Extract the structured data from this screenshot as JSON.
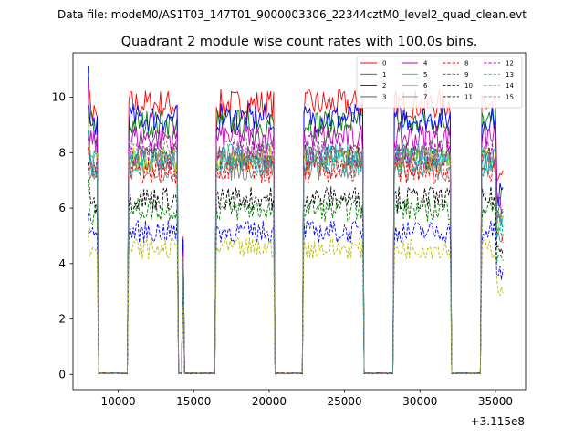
{
  "chart_data": {
    "type": "line",
    "suptitle": "Data file: modeM0/AS1T03_147T01_9000003306_22344cztM0_level2_quad_clean.evt",
    "title": "Quadrant 2 module wise count rates with 100.0s bins.",
    "xlabel": "",
    "ylabel": "",
    "x_offset_label": "+3.115e8",
    "xlim": [
      7000,
      37000
    ],
    "ylim": [
      -0.55,
      11.6
    ],
    "x_ticks": [
      10000,
      15000,
      20000,
      25000,
      30000,
      35000
    ],
    "x_tick_labels": [
      "10000",
      "15000",
      "20000",
      "25000",
      "30000",
      "35000"
    ],
    "y_ticks": [
      0,
      2,
      4,
      6,
      8,
      10
    ],
    "y_tick_labels": [
      "0",
      "2",
      "4",
      "6",
      "8",
      "10"
    ],
    "grid": false,
    "legend_position": "top-right",
    "legend_columns": 4,
    "segments": [
      {
        "start": 8000,
        "end": 8600,
        "state": "on"
      },
      {
        "start": 8700,
        "end": 10600,
        "state": "off"
      },
      {
        "start": 10700,
        "end": 13900,
        "state": "on"
      },
      {
        "start": 14000,
        "end": 14200,
        "state": "off"
      },
      {
        "start": 14300,
        "end": 14300,
        "state": "spike"
      },
      {
        "start": 14400,
        "end": 16400,
        "state": "off"
      },
      {
        "start": 16500,
        "end": 20300,
        "state": "on"
      },
      {
        "start": 20400,
        "end": 22200,
        "state": "off"
      },
      {
        "start": 22300,
        "end": 26200,
        "state": "on"
      },
      {
        "start": 26300,
        "end": 28200,
        "state": "off"
      },
      {
        "start": 28300,
        "end": 32000,
        "state": "on"
      },
      {
        "start": 32100,
        "end": 34000,
        "state": "off"
      },
      {
        "start": 34100,
        "end": 35500,
        "state": "on"
      }
    ],
    "series": [
      {
        "name": "0",
        "color": "#ff0000",
        "dashed": false,
        "level": 9.75,
        "peak": 11.0
      },
      {
        "name": "1",
        "color": "#008000",
        "dashed": false,
        "level": 9.05,
        "peak": 10.8
      },
      {
        "name": "2",
        "color": "#0000ff",
        "dashed": false,
        "level": 9.25,
        "peak": 10.9
      },
      {
        "name": "3",
        "color": "#404040",
        "dashed": false,
        "level": 7.85,
        "peak": 9.3
      },
      {
        "name": "4",
        "color": "#bf00bf",
        "dashed": false,
        "level": 8.55,
        "peak": 10.2
      },
      {
        "name": "5",
        "color": "#00bfbf",
        "dashed": false,
        "level": 7.85,
        "peak": 9.2
      },
      {
        "name": "6",
        "color": "#bfbf00",
        "dashed": false,
        "level": 7.75,
        "peak": 9.0
      },
      {
        "name": "7",
        "color": "#808080",
        "dashed": false,
        "level": 7.45,
        "peak": 8.8
      },
      {
        "name": "8",
        "color": "#ff0000",
        "dashed": true,
        "level": 7.35,
        "peak": 8.5
      },
      {
        "name": "9",
        "color": "#008000",
        "dashed": true,
        "level": 5.95,
        "peak": 7.0
      },
      {
        "name": "10",
        "color": "#0000ff",
        "dashed": true,
        "level": 5.15,
        "peak": 6.0
      },
      {
        "name": "11",
        "color": "#000000",
        "dashed": true,
        "level": 6.35,
        "peak": 7.4
      },
      {
        "name": "12",
        "color": "#bf00bf",
        "dashed": true,
        "level": 7.95,
        "peak": 9.0
      },
      {
        "name": "13",
        "color": "#00bfbf",
        "dashed": true,
        "level": 7.65,
        "peak": 8.7
      },
      {
        "name": "14",
        "color": "#bfbf00",
        "dashed": true,
        "level": 4.55,
        "peak": 5.5
      },
      {
        "name": "15",
        "color": "#808080",
        "dashed": true,
        "level": 8.05,
        "peak": 9.1
      }
    ]
  }
}
